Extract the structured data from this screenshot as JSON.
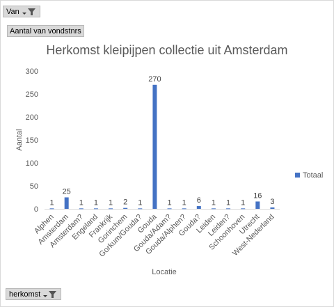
{
  "pivot_fields": {
    "filter_label": "Van",
    "value_label": "Aantal van vondstnrs",
    "axis_label": "herkomst"
  },
  "chart_data": {
    "type": "bar",
    "title": "Herkomst kleipijpen collectie uit Amsterdam",
    "xlabel": "Locatie",
    "ylabel": "Aantal",
    "ylim": [
      0,
      300
    ],
    "yticks": [
      0,
      50,
      100,
      150,
      200,
      250,
      300
    ],
    "grid": false,
    "legend_position": "right",
    "categories": [
      "Alphen",
      "Amsterdam",
      "Amsterdam?",
      "Engeland",
      "Frankrijk",
      "Gorinchem",
      "Gorkum/Gouda?",
      "Gouda",
      "Gouda/Adam?",
      "Gouda/Alphen?",
      "Gouda?",
      "Leiden",
      "Leiden?",
      "Schoonhoven",
      "Utrecht",
      "West-Nederland"
    ],
    "series": [
      {
        "name": "Totaal",
        "color": "#4472c4",
        "values": [
          1,
          25,
          1,
          1,
          1,
          2,
          1,
          270,
          1,
          1,
          6,
          1,
          1,
          1,
          16,
          3
        ]
      }
    ]
  }
}
